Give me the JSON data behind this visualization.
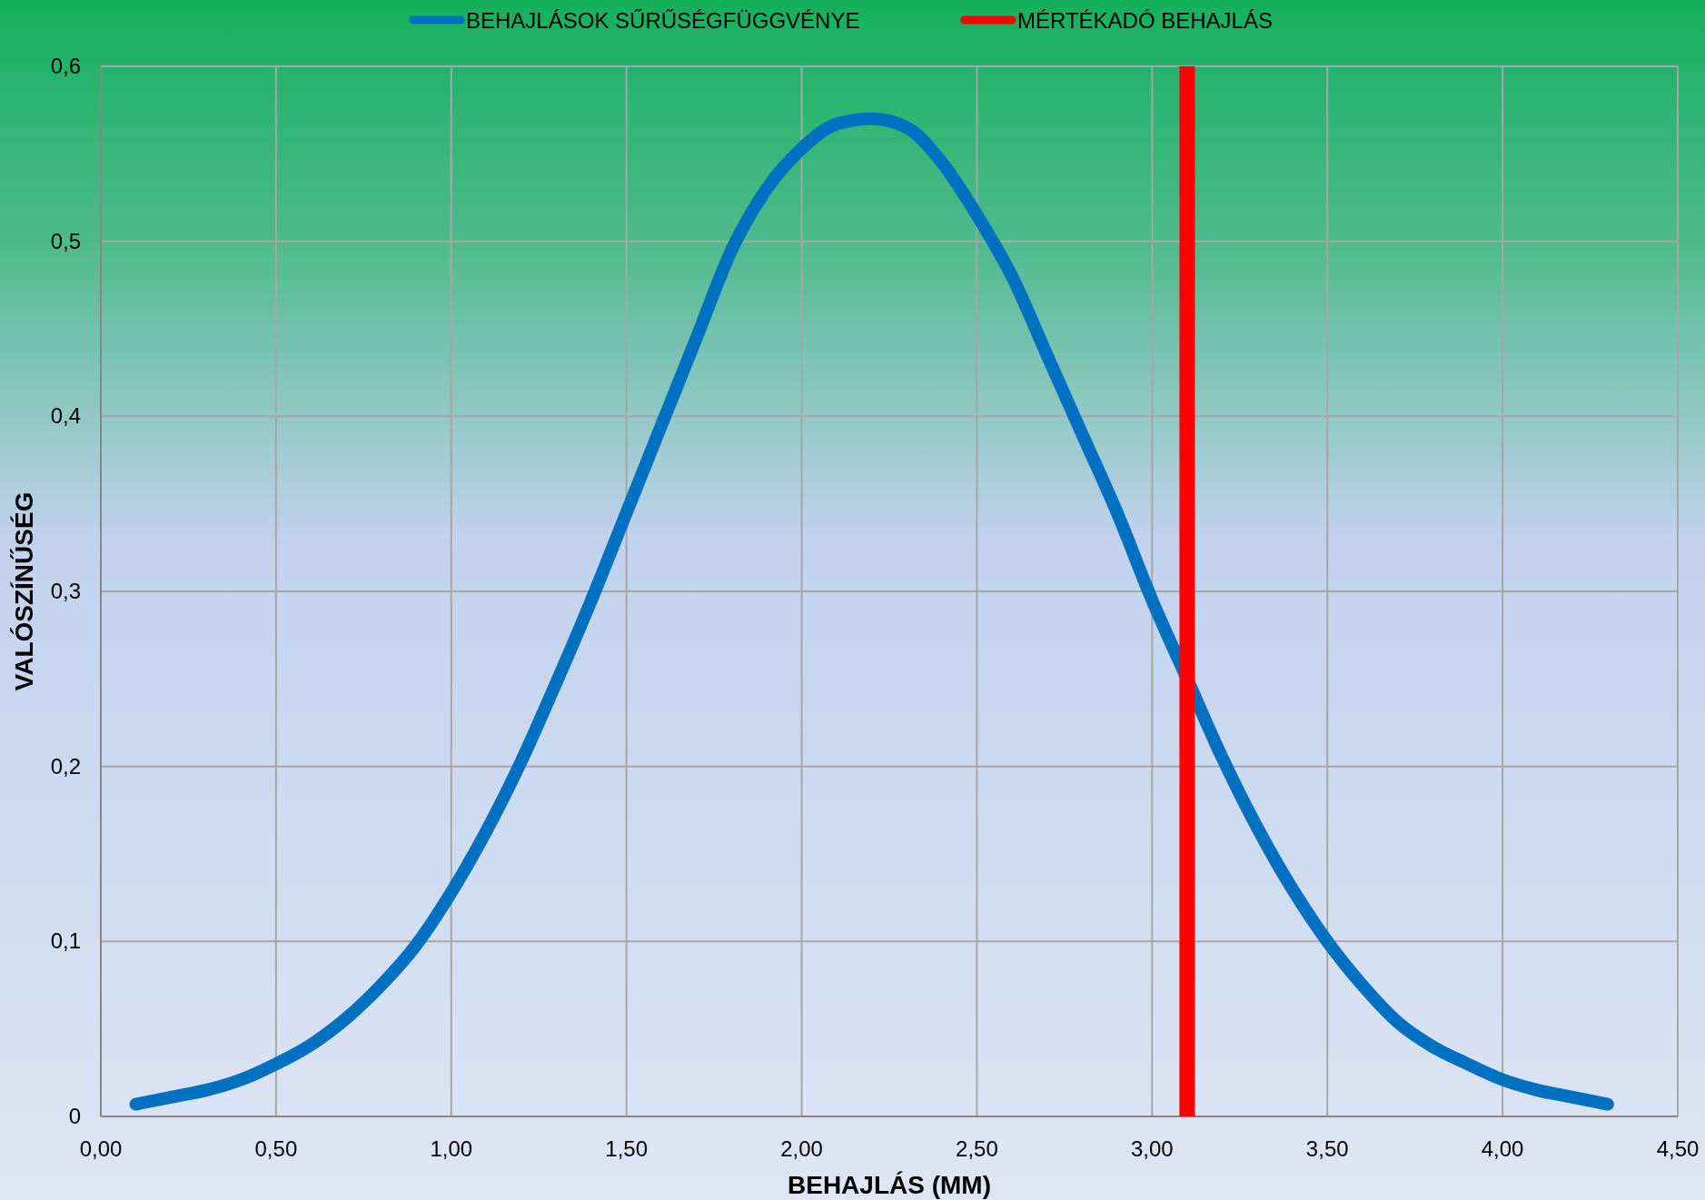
{
  "chart_data": {
    "type": "line",
    "xlabel": "BEHAJLÁS (MM)",
    "ylabel": "VALÓSZÍNŰSÉG",
    "legend": "top",
    "grid": true,
    "line_style": "solid",
    "marker": "none",
    "xlim": [
      0,
      4.5
    ],
    "ylim": [
      0,
      0.6
    ],
    "xticks": [
      {
        "value": 0,
        "label": "0,00"
      },
      {
        "value": 0.5,
        "label": "0,50"
      },
      {
        "value": 1,
        "label": "1,00"
      },
      {
        "value": 1.5,
        "label": "1,50"
      },
      {
        "value": 2,
        "label": "2,00"
      },
      {
        "value": 2.5,
        "label": "2,50"
      },
      {
        "value": 3,
        "label": "3,00"
      },
      {
        "value": 3.5,
        "label": "3,50"
      },
      {
        "value": 4,
        "label": "4,00"
      },
      {
        "value": 4.5,
        "label": "4,50"
      }
    ],
    "yticks": [
      0,
      {
        "value": 0.1,
        "label": "0,1"
      },
      {
        "value": 0.2,
        "label": "0,2"
      },
      {
        "value": 0.3,
        "label": "0,3"
      },
      {
        "value": 0.4,
        "label": "0,4"
      },
      {
        "value": 0.5,
        "label": "0,5"
      },
      {
        "value": 0.6,
        "label": "0,6"
      }
    ],
    "series": [
      {
        "name": "BEHAJLÁSOK SŰRŰSÉGFÜGGVÉNYE",
        "color": "#0070c0",
        "x": [
          0.1,
          0.2,
          0.3,
          0.4,
          0.5,
          0.6,
          0.7,
          0.8,
          0.9,
          1.0,
          1.1,
          1.2,
          1.3,
          1.4,
          1.5,
          1.6,
          1.7,
          1.8,
          1.9,
          2.0,
          2.1,
          2.2,
          2.3,
          2.4,
          2.5,
          2.6,
          2.7,
          2.8,
          2.9,
          3.0,
          3.1,
          3.2,
          3.3,
          3.4,
          3.5,
          3.6,
          3.7,
          3.8,
          3.9,
          4.0,
          4.1,
          4.2,
          4.3
        ],
        "values": [
          0.007,
          0.011,
          0.015,
          0.021,
          0.03,
          0.041,
          0.056,
          0.075,
          0.098,
          0.128,
          0.163,
          0.203,
          0.248,
          0.295,
          0.345,
          0.395,
          0.445,
          0.495,
          0.53,
          0.553,
          0.567,
          0.57,
          0.565,
          0.545,
          0.515,
          0.48,
          0.435,
          0.39,
          0.345,
          0.295,
          0.25,
          0.205,
          0.165,
          0.13,
          0.1,
          0.075,
          0.054,
          0.04,
          0.03,
          0.021,
          0.015,
          0.011,
          0.007
        ]
      },
      {
        "name": "MÉRTÉKADÓ BEHAJLÁS",
        "color": "#ff0000",
        "x": [
          3.1,
          3.1
        ],
        "values": [
          0,
          0.6
        ]
      }
    ]
  }
}
